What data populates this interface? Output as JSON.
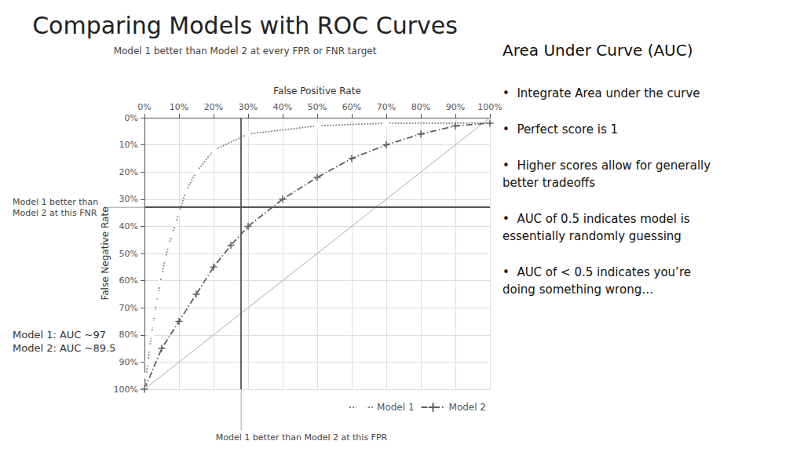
{
  "chart_data": {
    "type": "line",
    "title": "Comparing Models with ROC Curves",
    "subtitle": "Model 1 better than Model 2 at every FPR or FNR target",
    "x_label": "False Positive Rate",
    "y_label": "False Negative Rate",
    "xlim": [
      0,
      1.0
    ],
    "ylim": [
      0,
      1.0
    ],
    "xticks": [
      {
        "value": 0,
        "label": "0%"
      },
      {
        "value": 0.1,
        "label": "10%"
      },
      {
        "value": 0.2,
        "label": "20%"
      },
      {
        "value": 0.3,
        "label": "30%"
      },
      {
        "value": 0.4,
        "label": "40%"
      },
      {
        "value": 0.5,
        "label": "50%"
      },
      {
        "value": 0.6,
        "label": "60%"
      },
      {
        "value": 0.7,
        "label": "70%"
      },
      {
        "value": 0.8,
        "label": "80%"
      },
      {
        "value": 0.9,
        "label": "90%"
      },
      {
        "value": 1.0,
        "label": "100%"
      }
    ],
    "yticks": [
      {
        "value": 0,
        "label": "0%"
      },
      {
        "value": 0.1,
        "label": "10%"
      },
      {
        "value": 0.2,
        "label": "20%"
      },
      {
        "value": 0.3,
        "label": "30%"
      },
      {
        "value": 0.4,
        "label": "40%"
      },
      {
        "value": 0.5,
        "label": "50%"
      },
      {
        "value": 0.6,
        "label": "60%"
      },
      {
        "value": 0.7,
        "label": "70%"
      },
      {
        "value": 0.8,
        "label": "80%"
      },
      {
        "value": 0.9,
        "label": "90%"
      },
      {
        "value": 1.0,
        "label": "100%"
      }
    ],
    "grid": true,
    "legend": "bottom",
    "series": [
      {
        "name": "Model 1",
        "color": "#808080",
        "marker": "circle",
        "line_style": "dotted",
        "x": [
          0.0,
          0.005,
          0.01,
          0.015,
          0.02,
          0.025,
          0.03,
          0.035,
          0.04,
          0.045,
          0.05,
          0.06,
          0.07,
          0.08,
          0.09,
          0.1,
          0.12,
          0.15,
          0.2,
          0.3,
          0.5,
          0.7,
          1.0
        ],
        "values": [
          1.0,
          0.95,
          0.9,
          0.85,
          0.8,
          0.76,
          0.72,
          0.68,
          0.65,
          0.61,
          0.58,
          0.52,
          0.47,
          0.43,
          0.39,
          0.35,
          0.27,
          0.2,
          0.12,
          0.06,
          0.03,
          0.02,
          0.02
        ]
      },
      {
        "name": "Model 2",
        "color": "#606060",
        "marker": "plus",
        "line_style": "dashdot",
        "x": [
          0.0,
          0.05,
          0.1,
          0.15,
          0.2,
          0.25,
          0.3,
          0.4,
          0.5,
          0.6,
          0.7,
          0.8,
          0.9,
          1.0
        ],
        "values": [
          1.0,
          0.85,
          0.75,
          0.65,
          0.55,
          0.47,
          0.4,
          0.3,
          0.22,
          0.15,
          0.1,
          0.06,
          0.03,
          0.02
        ]
      }
    ],
    "crosshair": {
      "x": 0.28,
      "y": 0.33,
      "color": "#555555"
    },
    "reference_line": {
      "x": [
        0,
        1
      ],
      "y": [
        1,
        0
      ],
      "color": "#aaaaaa"
    },
    "annotations": {
      "top": "Model 1 better than\nModel 2 at this FNR",
      "bottom": "Model 1 better than Model 2 at this FPR",
      "auc": "Model 1: AUC ~97\nModel 2: AUC ~89.5"
    },
    "panel": {
      "title": "Area Under Curve (AUC)",
      "items": [
        "•  Integrate Area under the curve",
        "•  Perfect score is 1",
        "•  Higher scores allow for generally\nbetter tradeoffs",
        "•  AUC of 0.5 indicates model is\nessentially randomly guessing",
        "•  AUC of < 0.5 indicates you’re\ndoing something wrong…"
      ]
    }
  }
}
